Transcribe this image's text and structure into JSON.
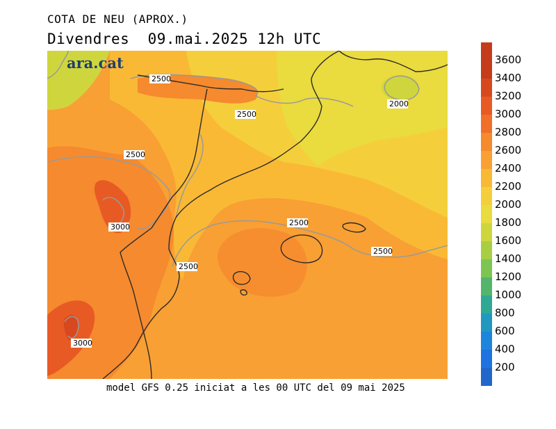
{
  "title": "COTA DE NEU (APROX.)",
  "subtitle": "Divendres  09.mai.2025 12h UTC",
  "logo": "ara.cat",
  "footer": "model GFS 0.25 iniciat a les 00 UTC del 09 mai 2025",
  "colorbar": {
    "labels": [
      "3600",
      "3400",
      "3200",
      "3000",
      "2800",
      "2600",
      "2400",
      "2200",
      "2000",
      "1800",
      "1600",
      "1400",
      "1200",
      "1000",
      "800",
      "600",
      "400",
      "200"
    ],
    "colors": [
      "#c43c1c",
      "#d8481e",
      "#e85a24",
      "#f06f2a",
      "#f58a2e",
      "#f8a034",
      "#f9b935",
      "#f5cf3b",
      "#eadb3e",
      "#cfd63d",
      "#a8cf44",
      "#7dc553",
      "#52b56a",
      "#2fa894",
      "#2098c0",
      "#1d85dc",
      "#1e73e0",
      "#2266cc"
    ]
  },
  "contour_labels": [
    "2500",
    "2500",
    "2000",
    "2500",
    "2500",
    "3000",
    "2500",
    "2500",
    "3000"
  ]
}
